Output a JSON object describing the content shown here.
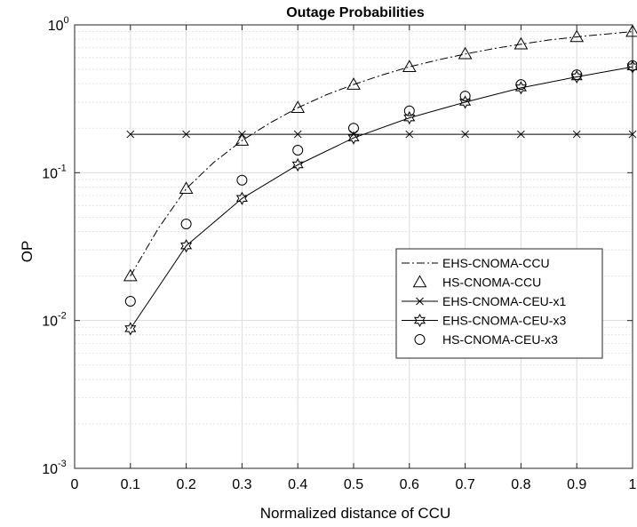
{
  "chart_data": {
    "type": "line",
    "title": "Outage Probabilities",
    "xlabel": "Normalized distance of CCU",
    "ylabel": "OP",
    "xlim": [
      0,
      1
    ],
    "ylim": [
      0.001,
      1
    ],
    "yscale": "log",
    "grid": true,
    "legend_position": "right",
    "x_ticks": [
      0,
      0.1,
      0.2,
      0.3,
      0.4,
      0.5,
      0.6,
      0.7,
      0.8,
      0.9,
      1
    ],
    "x_tick_labels": [
      "0",
      "0.1",
      "0.2",
      "0.3",
      "0.4",
      "0.5",
      "0.6",
      "0.7",
      "0.8",
      "0.9",
      "1"
    ],
    "y_ticks": [
      {
        "value": 1,
        "base": "10",
        "exp": "0"
      },
      {
        "value": 0.1,
        "base": "10",
        "exp": "-1"
      },
      {
        "value": 0.01,
        "base": "10",
        "exp": "-2"
      },
      {
        "value": 0.001,
        "base": "10",
        "exp": "-3"
      }
    ],
    "x": [
      0.1,
      0.2,
      0.3,
      0.4,
      0.5,
      0.6,
      0.7,
      0.8,
      0.9,
      1.0
    ],
    "series": [
      {
        "name": "EHS-CNOMA-CCU",
        "line": "dashdot",
        "marker": "none",
        "x": [
          0.1,
          0.15,
          0.2,
          0.25,
          0.3,
          0.35,
          0.4,
          0.45,
          0.5,
          0.55,
          0.6,
          0.65,
          0.7,
          0.75,
          0.8,
          0.85,
          0.9,
          0.95,
          1.0
        ],
        "values": [
          0.02,
          0.042,
          0.078,
          0.118,
          0.165,
          0.217,
          0.275,
          0.335,
          0.395,
          0.457,
          0.52,
          0.578,
          0.635,
          0.69,
          0.74,
          0.79,
          0.83,
          0.865,
          0.9
        ]
      },
      {
        "name": "HS-CNOMA-CCU",
        "line": "none",
        "marker": "triangle",
        "values": [
          0.02,
          0.078,
          0.165,
          0.275,
          0.395,
          0.52,
          0.635,
          0.74,
          0.83,
          0.9
        ]
      },
      {
        "name": "EHS-CNOMA-CEU-x1",
        "line": "solid",
        "marker": "x",
        "values": [
          0.182,
          0.182,
          0.182,
          0.182,
          0.182,
          0.182,
          0.182,
          0.182,
          0.182,
          0.182
        ]
      },
      {
        "name": "EHS-CNOMA-CEU-x3",
        "line": "solid",
        "marker": "hexagram",
        "values": [
          0.0088,
          0.032,
          0.067,
          0.113,
          0.172,
          0.235,
          0.3,
          0.375,
          0.445,
          0.52
        ]
      },
      {
        "name": "HS-CNOMA-CEU-x3",
        "line": "none",
        "marker": "circle",
        "values": [
          0.0135,
          0.045,
          0.089,
          0.142,
          0.2,
          0.262,
          0.33,
          0.395,
          0.46,
          0.53
        ]
      }
    ]
  }
}
